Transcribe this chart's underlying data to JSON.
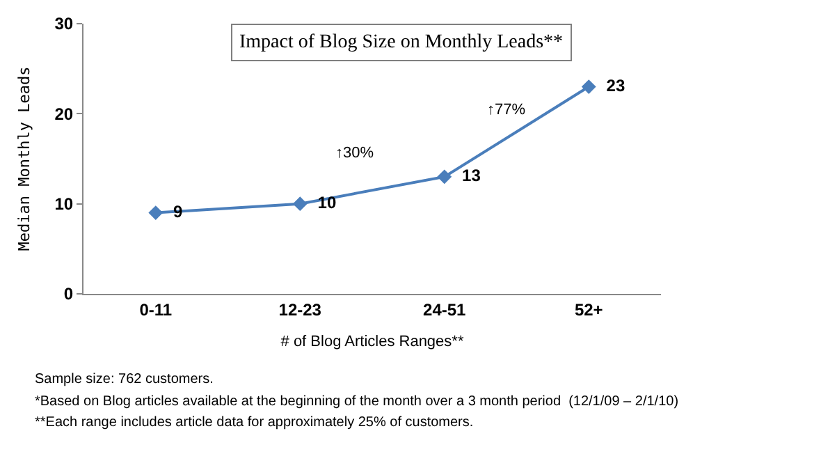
{
  "chart_data": {
    "type": "line",
    "title": "Impact of Blog Size on Monthly Leads**",
    "xlabel": "# of Blog Articles Ranges**",
    "ylabel": "Median Monthly Leads",
    "categories": [
      "0-11",
      "12-23",
      "24-51",
      "52+"
    ],
    "series": [
      {
        "color": "#4a7ebb",
        "values": [
          9,
          10,
          13,
          23
        ]
      }
    ],
    "ylim": [
      0,
      30
    ],
    "yticks": [
      0,
      10,
      20,
      30
    ],
    "legend": false,
    "marker": "diamond",
    "line_style": "solid",
    "data_labels": true,
    "annotations": [
      "↑30%",
      "↑77%",
      "Sample size: 762 customers.",
      "*Based on Blog articles available at the beginning of the month over a 3 month period  (12/1/09 – 2/1/10)",
      "**Each range includes article data for approximately 25% of customers."
    ]
  }
}
